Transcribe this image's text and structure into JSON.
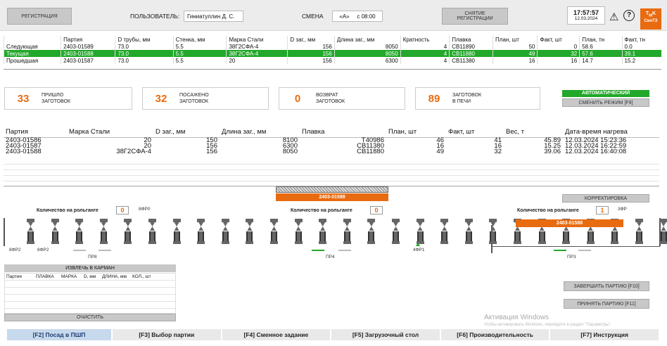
{
  "header": {
    "registration": "РЕГИСТРАЦИЯ",
    "user_label": "ПОЛЬЗОВАТЕЛЬ:",
    "user_value": "Гиниатуллин Д. С.",
    "shift_label": "СМЕНА",
    "shift_value": "«А»",
    "shift_time": "с 08:00",
    "unreg": "СНЯТИЕ РЕГИСТРАЦИИ",
    "time": "17:57:57",
    "date": "12.03.2024",
    "logo_top": "ТМК",
    "logo_bottom": "СинТЗ"
  },
  "plan": {
    "headers": [
      "",
      "Партия",
      "D трубы, мм",
      "Стенка, мм",
      "Марка Стали",
      "D заг., мм",
      "Длина заг., мм",
      "Кратность",
      "Плавка",
      "План, шт",
      "Факт, шт",
      "План, тн",
      "Факт, тн"
    ],
    "rows": [
      [
        "Следующая",
        "2403-01589",
        "73.0",
        "5.5",
        "38Г2СФА-4",
        "156",
        "8050",
        "4",
        "СВ11890",
        "50",
        "0",
        "58.6",
        "0.0"
      ],
      [
        "Текущая",
        "2403-01588",
        "73.0",
        "5.5",
        "38Г2СФА-4",
        "156",
        "8050",
        "4",
        "СВ11880",
        "49",
        "32",
        "57.6",
        "39.1"
      ],
      [
        "Прошедшая",
        "2403-01587",
        "73.0",
        "5.5",
        "20",
        "156",
        "6300",
        "4",
        "СВ11380",
        "16",
        "16",
        "14.7",
        "15.2"
      ]
    ]
  },
  "stats": [
    {
      "num": "33",
      "label": "ПРИШЛО\nЗАГОТОВОК"
    },
    {
      "num": "32",
      "label": "ПОСАЖЕНО\nЗАГОТОВОК"
    },
    {
      "num": "0",
      "label": "ВОЗВРАТ\nЗАГОТОВОК"
    },
    {
      "num": "89",
      "label": "ЗАГОТОВОК\nВ ПЕЧИ"
    }
  ],
  "mode": {
    "auto": "АВТОМАТИЧЕСКИЙ",
    "change": "СМЕНИТЬ РЕЖИМ [F9]"
  },
  "heat": {
    "headers": [
      "Партия",
      "Марка Стали",
      "D заг., мм",
      "Длина заг., мм",
      "Плавка",
      "План, шт",
      "Факт, шт",
      "Вес, т",
      "Дата-время нагрева"
    ],
    "rows": [
      [
        "2403-01586",
        "20",
        "150",
        "8100",
        "Т40986",
        "46",
        "41",
        "45.89",
        "12.03.2024 15:23:36"
      ],
      [
        "2403-01587",
        "20",
        "156",
        "6300",
        "СВ11380",
        "16",
        "16",
        "15.25",
        "12.03.2024 16:22:59"
      ],
      [
        "2403-01588",
        "38Г2СФА-4",
        "156",
        "8050",
        "СВ11880",
        "49",
        "32",
        "39.06",
        "12.03.2024 16:40:08"
      ]
    ]
  },
  "correct": "КОРРЕКТИРОВКА",
  "billet": "2403-01588",
  "billet2": "2403-01588",
  "rollgang": {
    "label": "Количество на рольганге",
    "c1": "0",
    "c2": "0",
    "c3": "1"
  },
  "sensors": {
    "f0": "8ФР0",
    "f2a": "8ФР2",
    "f2b": "8ФР2",
    "fr3": "3ФР",
    "fr1": "4ФР1",
    "pr8": "ПР8",
    "pr4": "ПР4",
    "pr3": "ПР3"
  },
  "pocket": {
    "title": "ИЗВЛЕЧЬ В КАРМАН",
    "headers": [
      "Партия",
      "ПЛАВКА",
      "МАРКА",
      "D, мм",
      "ДЛИНА, мм",
      "КОЛ., шт"
    ],
    "clear": "ОЧИСТИТЬ"
  },
  "actions": {
    "finish": "ЗАВЕРШИТЬ ПАРТИЮ [F10]",
    "accept": "ПРИНЯТЬ ПАРТИЮ [F11]"
  },
  "watermark": {
    "line1": "Активация Windows",
    "line2": "Чтобы активировать Windows, перейдите в раздел \"Параметры\"."
  },
  "tabs": [
    "[F2] Посад в ПШП",
    "[F3] Выбор партии",
    "[F4] Сменное задание",
    "[F5] Загрузочный стол",
    "[F6] Производительность",
    "[F7] Инструкция"
  ],
  "colors": {
    "accent": "#e86b10",
    "active": "#22a82a"
  }
}
